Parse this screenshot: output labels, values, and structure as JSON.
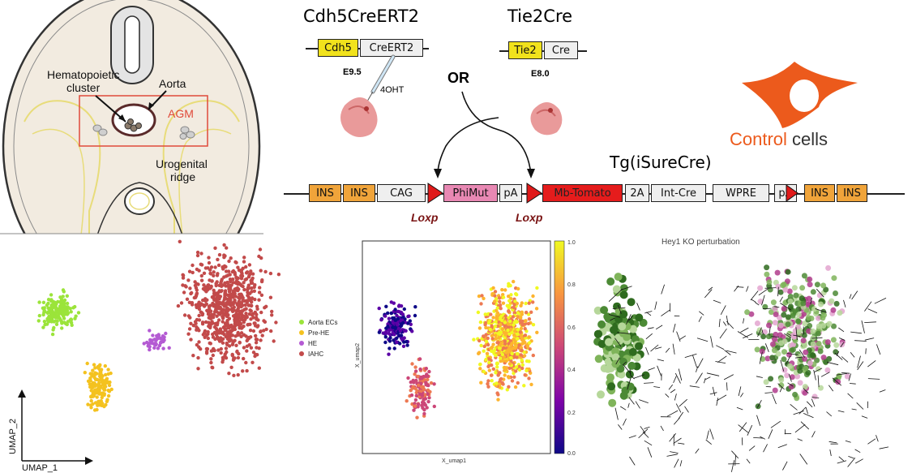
{
  "anatomy": {
    "label_hc": [
      "Hematopoietic",
      "cluster"
    ],
    "label_aorta": "Aorta",
    "label_agm": "AGM",
    "label_uro": [
      "Urogenital",
      "ridge"
    ]
  },
  "constructs": {
    "cdh5_title": "Cdh5CreERT2",
    "cdh5_promoter": "Cdh5",
    "cdh5_cre": "CreERT2",
    "cdh5_stage": "E9.5",
    "cdh5_drug": "4OHT",
    "tie2_title": "Tie2Cre",
    "tie2_promoter": "Tie2",
    "tie2_cre": "Cre",
    "tie2_stage": "E8.0",
    "or_label": "OR"
  },
  "control": {
    "word1": "Control",
    "word2": " cells"
  },
  "transgene": {
    "title": "Tg(iSureCre)",
    "elements": [
      "INS",
      "INS",
      "CAG",
      "PhiMut",
      "pA",
      "Mb-Tomato",
      "2A",
      "Int-Cre",
      "WPRE",
      "pA",
      "INS",
      "INS"
    ],
    "loxp": "Loxp"
  },
  "colors": {
    "aorta_ecs": "#9be43a",
    "pre_he": "#f4c21f",
    "he": "#b45ad3",
    "iahc": "#c24a4a",
    "control_orange": "#ec5a1c",
    "agm_red": "#e04a3a"
  },
  "umap": {
    "xlabel": "UMAP_1",
    "ylabel": "UMAP_2",
    "legend": [
      "Aorta ECs",
      "Pre-HE",
      "HE",
      "IAHC"
    ]
  },
  "pseudotime": {
    "xlabel": "X_umap1",
    "ylabel": "X_umap2",
    "colorbar_ticks": [
      "1.0",
      "0.8",
      "0.6",
      "0.4",
      "0.2",
      "0.0"
    ]
  },
  "perturbation": {
    "title": "Hey1 KO perturbation"
  }
}
